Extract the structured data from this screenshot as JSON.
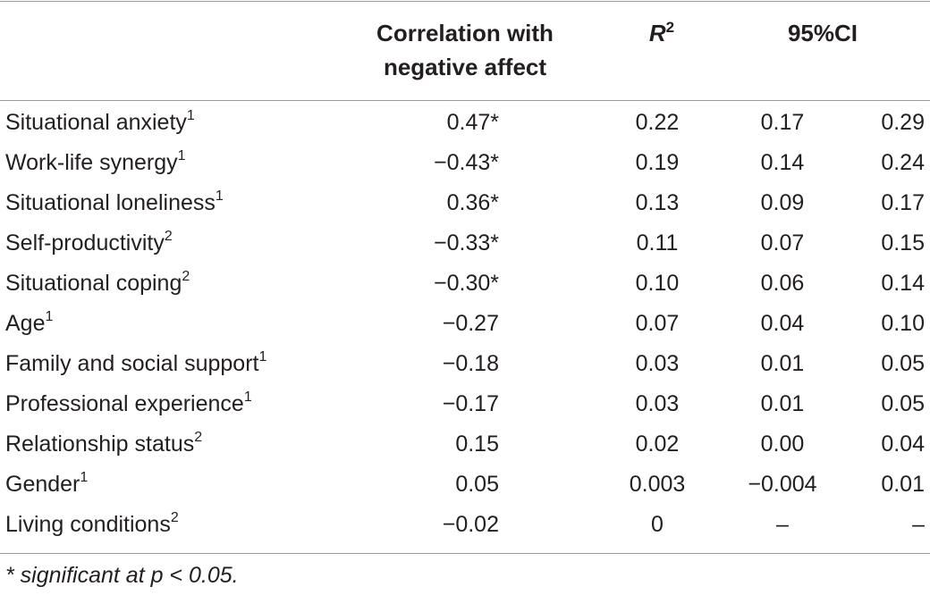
{
  "header": {
    "correlation_line1": "Correlation with",
    "correlation_line2": "negative affect",
    "r2_base": "R",
    "r2_exp": "2",
    "ci": "95%CI"
  },
  "rows": [
    {
      "label": "Situational anxiety",
      "sup": "1",
      "corr": "0.47*",
      "r2": "0.22",
      "ci_low": "0.17",
      "ci_high": "0.29"
    },
    {
      "label": "Work-life synergy",
      "sup": "1",
      "corr": "−0.43*",
      "r2": "0.19",
      "ci_low": "0.14",
      "ci_high": "0.24"
    },
    {
      "label": "Situational loneliness",
      "sup": "1",
      "corr": "0.36*",
      "r2": "0.13",
      "ci_low": "0.09",
      "ci_high": "0.17"
    },
    {
      "label": "Self-productivity",
      "sup": "2",
      "corr": "−0.33*",
      "r2": "0.11",
      "ci_low": "0.07",
      "ci_high": "0.15"
    },
    {
      "label": "Situational coping",
      "sup": "2",
      "corr": "−0.30*",
      "r2": "0.10",
      "ci_low": "0.06",
      "ci_high": "0.14"
    },
    {
      "label": "Age",
      "sup": "1",
      "corr": "−0.27",
      "r2": "0.07",
      "ci_low": "0.04",
      "ci_high": "0.10"
    },
    {
      "label": "Family and social support",
      "sup": "1",
      "corr": "−0.18",
      "r2": "0.03",
      "ci_low": "0.01",
      "ci_high": "0.05"
    },
    {
      "label": "Professional experience",
      "sup": "1",
      "corr": "−0.17",
      "r2": "0.03",
      "ci_low": "0.01",
      "ci_high": "0.05"
    },
    {
      "label": "Relationship status",
      "sup": "2",
      "corr": "0.15",
      "r2": "0.02",
      "ci_low": "0.00",
      "ci_high": "0.04"
    },
    {
      "label": "Gender",
      "sup": "1",
      "corr": "0.05",
      "r2": "0.003",
      "ci_low": "−0.004",
      "ci_high": "0.01"
    },
    {
      "label": "Living conditions",
      "sup": "2",
      "corr": "−0.02",
      "r2": "0",
      "ci_low": "–",
      "ci_high": "–"
    }
  ],
  "footnote": "* significant at p < 0.05."
}
